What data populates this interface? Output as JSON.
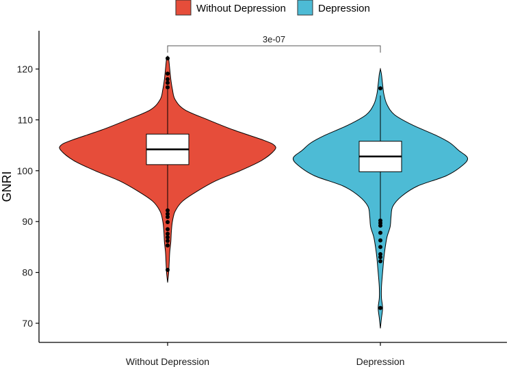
{
  "chart_data": {
    "type": "violin",
    "title": "",
    "ylabel": "GNRI",
    "xlabel": "",
    "ylim": [
      68,
      126
    ],
    "yticks": [
      70,
      80,
      90,
      100,
      110,
      120
    ],
    "grid": false,
    "legend": {
      "position": "top",
      "entries": [
        "Without Depression",
        "Depression"
      ]
    },
    "categories": [
      "Without Depression",
      "Depression"
    ],
    "colors": {
      "Without Depression": "#E64D3A",
      "Depression": "#4DBBD5"
    },
    "comparison": {
      "label": "3e-07",
      "between": [
        "Without Depression",
        "Depression"
      ]
    },
    "groups": [
      {
        "name": "Without Depression",
        "box": {
          "q1": 101.2,
          "median": 104.2,
          "q3": 107.2,
          "whisker_low": 92.5,
          "whisker_high": 116.0
        },
        "range": [
          78,
          122.5
        ],
        "outliers": [
          122.1,
          119.1,
          118.0,
          117.3,
          116.4,
          92.2,
          91.5,
          90.9,
          89.9,
          88.5,
          87.6,
          86.9,
          86.2,
          85.3,
          80.5
        ],
        "density": [
          [
            78,
            0.0
          ],
          [
            80,
            0.01
          ],
          [
            82,
            0.015
          ],
          [
            84,
            0.02
          ],
          [
            86,
            0.03
          ],
          [
            88,
            0.035
          ],
          [
            90,
            0.045
          ],
          [
            92,
            0.07
          ],
          [
            94,
            0.14
          ],
          [
            96,
            0.28
          ],
          [
            98,
            0.45
          ],
          [
            100,
            0.68
          ],
          [
            102,
            0.88
          ],
          [
            104,
            1.0
          ],
          [
            105,
            1.0
          ],
          [
            106,
            0.9
          ],
          [
            108,
            0.62
          ],
          [
            110,
            0.38
          ],
          [
            112,
            0.16
          ],
          [
            114,
            0.07
          ],
          [
            116,
            0.045
          ],
          [
            118,
            0.03
          ],
          [
            120,
            0.02
          ],
          [
            122,
            0.01
          ],
          [
            122.5,
            0.0
          ]
        ]
      },
      {
        "name": "Depression",
        "box": {
          "q1": 99.8,
          "median": 102.8,
          "q3": 105.8,
          "whisker_low": 90.5,
          "whisker_high": 114.8
        },
        "range": [
          69,
          120
        ],
        "outliers": [
          116.2,
          90.2,
          89.7,
          89.2,
          87.8,
          86.3,
          85.0,
          83.6,
          83.0,
          82.2,
          73.0
        ],
        "density": [
          [
            69,
            0.0
          ],
          [
            71,
            0.012
          ],
          [
            73,
            0.025
          ],
          [
            75,
            0.012
          ],
          [
            77,
            0.012
          ],
          [
            79,
            0.02
          ],
          [
            81,
            0.03
          ],
          [
            83,
            0.04
          ],
          [
            85,
            0.055
          ],
          [
            87,
            0.075
          ],
          [
            89,
            0.11
          ],
          [
            91,
            0.12
          ],
          [
            93,
            0.14
          ],
          [
            95,
            0.24
          ],
          [
            97,
            0.42
          ],
          [
            99,
            0.74
          ],
          [
            101,
            0.92
          ],
          [
            102.5,
            0.98
          ],
          [
            104,
            0.88
          ],
          [
            105.5,
            0.78
          ],
          [
            107,
            0.62
          ],
          [
            109,
            0.36
          ],
          [
            111,
            0.16
          ],
          [
            113,
            0.075
          ],
          [
            115,
            0.04
          ],
          [
            117,
            0.025
          ],
          [
            119,
            0.012
          ],
          [
            120,
            0.0
          ]
        ]
      }
    ]
  }
}
